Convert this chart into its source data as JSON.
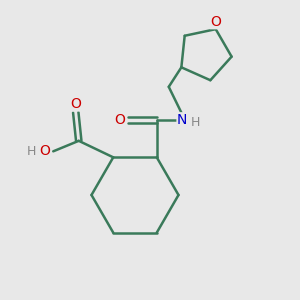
{
  "background_color": "#e8e8e8",
  "bond_color": "#3a7a5a",
  "bond_width": 1.8,
  "O_color": "#cc0000",
  "N_color": "#0000cc",
  "H_color": "#888888",
  "figsize": [
    3.0,
    3.0
  ],
  "dpi": 100,
  "xlim": [
    0,
    10
  ],
  "ylim": [
    0,
    10
  ]
}
